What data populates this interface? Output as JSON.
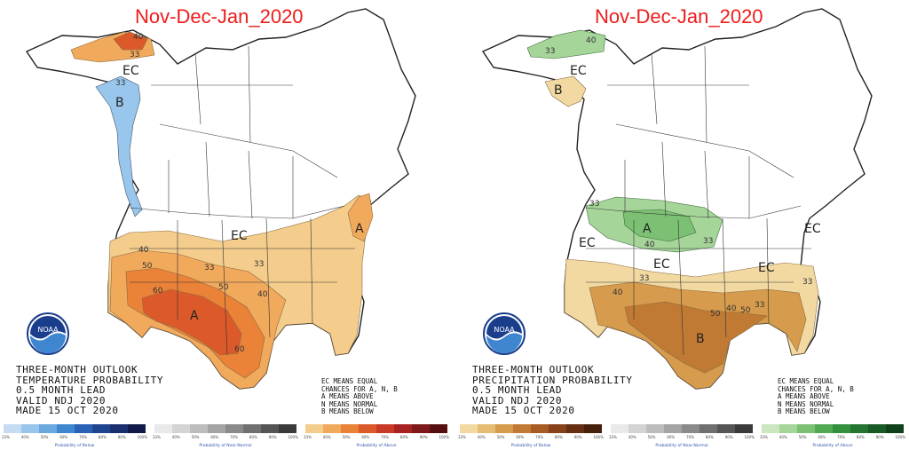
{
  "maps": [
    {
      "title": "Nov-Dec-Jan_2020",
      "info_lines": [
        "THREE-MONTH OUTLOOK",
        "TEMPERATURE PROBABILITY",
        "0.5 MONTH LEAD",
        "VALID NDJ 2020",
        "MADE 15 OCT 2020"
      ],
      "region_labels": [
        "EC",
        "B",
        "EC",
        "A",
        "A"
      ],
      "isoline_labels": [
        "33",
        "40",
        "33",
        "33",
        "40",
        "50",
        "33",
        "60",
        "50",
        "40",
        "60"
      ],
      "scales": [
        {
          "caption": "Probability of Below",
          "ticks": [
            "33%",
            "40%",
            "50%",
            "60%",
            "70%",
            "80%",
            "90%",
            "100%"
          ],
          "colors": [
            "#c6dcf2",
            "#99c6ec",
            "#6aa8e0",
            "#3f86d0",
            "#2a63b6",
            "#20458f",
            "#1a2f70",
            "#111a4a"
          ]
        },
        {
          "caption": "Probability of Near-Normal",
          "ticks": [
            "33%",
            "40%",
            "50%",
            "60%",
            "70%",
            "80%",
            "90%",
            "100%"
          ],
          "colors": [
            "#e9e9e9",
            "#d4d4d4",
            "#bdbdbd",
            "#a4a4a4",
            "#8a8a8a",
            "#707070",
            "#555555",
            "#3a3a3a"
          ]
        },
        {
          "caption": "Probability of Above",
          "ticks": [
            "33%",
            "40%",
            "50%",
            "60%",
            "70%",
            "80%",
            "90%",
            "100%"
          ],
          "colors": [
            "#f4cd8c",
            "#f1a95c",
            "#ea8238",
            "#dc5a2a",
            "#c83a26",
            "#a82222",
            "#7e1a1a",
            "#561010"
          ]
        }
      ]
    },
    {
      "title": "Nov-Dec-Jan_2020",
      "info_lines": [
        "THREE-MONTH OUTLOOK",
        "PRECIPITATION PROBABILITY",
        "0.5 MONTH LEAD",
        "VALID NDJ 2020",
        "MADE 15 OCT 2020"
      ],
      "region_labels": [
        "EC",
        "B",
        "A",
        "EC",
        "EC",
        "EC",
        "EC",
        "B"
      ],
      "isoline_labels": [
        "40",
        "33",
        "33",
        "33",
        "40",
        "33",
        "40",
        "50",
        "40",
        "50",
        "33",
        "33"
      ],
      "scales": [
        {
          "caption": "Probability of Below",
          "ticks": [
            "33%",
            "40%",
            "50%",
            "60%",
            "70%",
            "80%",
            "90%",
            "100%"
          ],
          "colors": [
            "#f1d9a1",
            "#e6bc72",
            "#d69b4c",
            "#c17a33",
            "#a65c22",
            "#874219",
            "#662f12",
            "#45200b"
          ]
        },
        {
          "caption": "Probability of Near-Normal",
          "ticks": [
            "33%",
            "40%",
            "50%",
            "60%",
            "70%",
            "80%",
            "90%",
            "100%"
          ],
          "colors": [
            "#e9e9e9",
            "#d4d4d4",
            "#bdbdbd",
            "#a4a4a4",
            "#8a8a8a",
            "#707070",
            "#555555",
            "#3a3a3a"
          ]
        },
        {
          "caption": "Probability of Above",
          "ticks": [
            "33%",
            "40%",
            "50%",
            "60%",
            "70%",
            "80%",
            "90%",
            "100%"
          ],
          "colors": [
            "#cbe7c0",
            "#a6d59a",
            "#7cc173",
            "#52a953",
            "#33903c",
            "#247530",
            "#195b25",
            "#10401a"
          ]
        }
      ]
    }
  ],
  "legend_note": [
    "EC MEANS EQUAL",
    "CHANCES FOR A, N, B",
    "A MEANS ABOVE",
    "N MEANS NORMAL",
    "B MEANS BELOW"
  ],
  "logo_text": "NOAA",
  "colors": {
    "title_red": "#ee1c1c",
    "above_temp": "#ea8238",
    "below_temp": "#6aa8e0",
    "above_precip": "#7cc173",
    "below_precip": "#c17a33"
  }
}
